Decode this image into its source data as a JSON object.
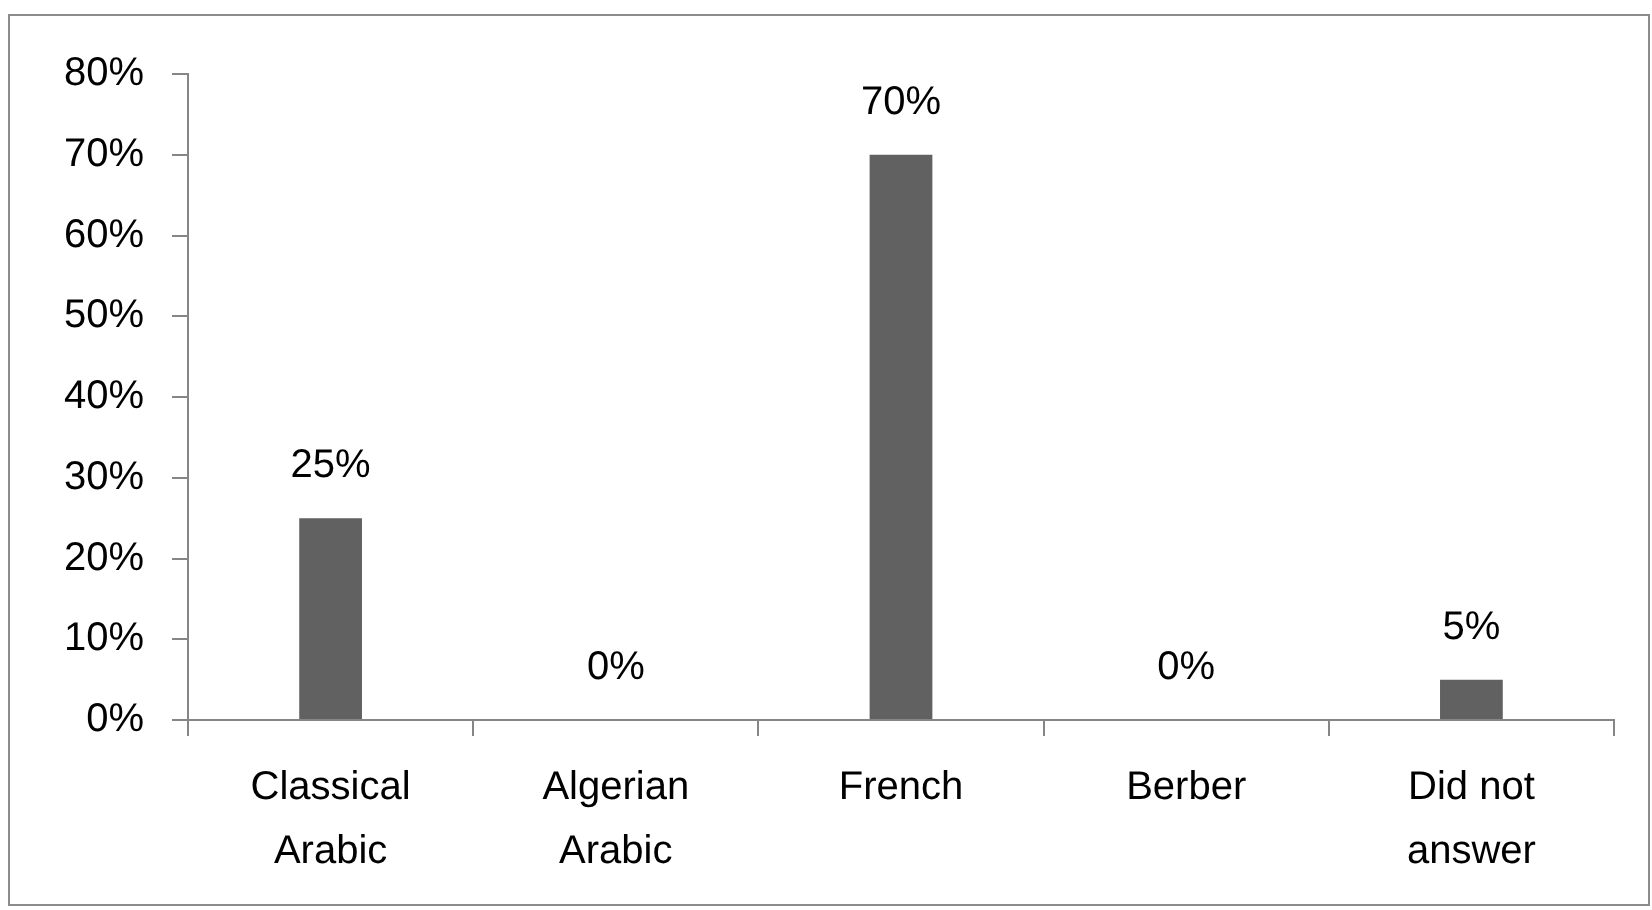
{
  "chart_data": {
    "type": "bar",
    "categories": [
      "Classical Arabic",
      "Algerian Arabic",
      "French",
      "Berber",
      "Did not answer"
    ],
    "values": [
      25,
      0,
      70,
      0,
      5
    ],
    "color": "#616161",
    "value_labels": [
      "25%",
      "0%",
      "70%",
      "0%",
      "5%"
    ],
    "ylim": [
      0,
      80
    ],
    "yticks": [
      {
        "value": 0,
        "label": "0%"
      },
      {
        "value": 10,
        "label": "10%"
      },
      {
        "value": 20,
        "label": "20%"
      },
      {
        "value": 30,
        "label": "30%"
      },
      {
        "value": 40,
        "label": "40%"
      },
      {
        "value": 50,
        "label": "50%"
      },
      {
        "value": 60,
        "label": "60%"
      },
      {
        "value": 70,
        "label": "70%"
      },
      {
        "value": 80,
        "label": "80%"
      }
    ],
    "grid": false,
    "legend": false
  }
}
